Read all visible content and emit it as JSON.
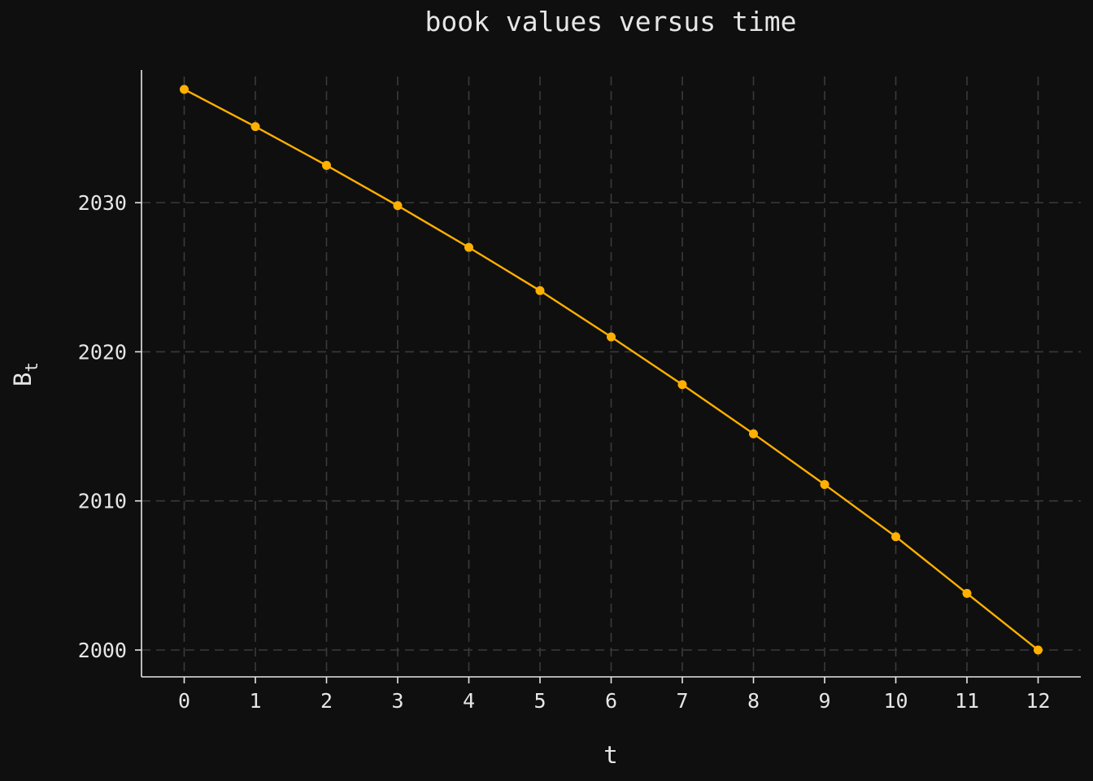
{
  "chart_data": {
    "type": "line",
    "title": "book values versus time",
    "xlabel": "t",
    "ylabel": "B",
    "ylabel_subscript": "t",
    "x": [
      0,
      1,
      2,
      3,
      4,
      5,
      6,
      7,
      8,
      9,
      10,
      11,
      12
    ],
    "series": [
      {
        "values": [
          2037.6,
          2035.1,
          2032.5,
          2029.8,
          2027.0,
          2024.1,
          2021.0,
          2017.8,
          2014.5,
          2011.1,
          2007.6,
          2003.8,
          2000.0
        ],
        "color": "#ffb000"
      }
    ],
    "xticks": [
      "0",
      "1",
      "2",
      "3",
      "4",
      "5",
      "6",
      "7",
      "8",
      "9",
      "10",
      "11",
      "12"
    ],
    "yticks": [
      "2000",
      "2010",
      "2020",
      "2030"
    ],
    "ytick_values": [
      2000,
      2010,
      2020,
      2030
    ],
    "xlim": [
      -0.6,
      12.6
    ],
    "ylim": [
      1998.2,
      2038.9
    ],
    "grid": true
  },
  "colors": {
    "background": "#0f0f0f",
    "line": "#ffb000",
    "text": "#e6e6e6",
    "grid": "#3a3a3a"
  }
}
